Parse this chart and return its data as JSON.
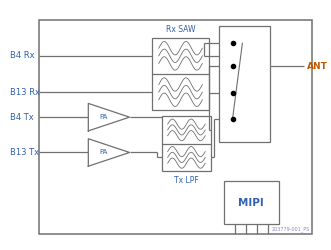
{
  "fig_width": 3.31,
  "fig_height": 2.5,
  "dpi": 100,
  "bg_color": "#ffffff",
  "line_color": "#707070",
  "label_blue": "#3060b0",
  "label_orange": "#c05800",
  "watermark_color": "#8888cc",
  "watermark": "203779-001_PS",
  "labels_left": [
    "B4 Rx",
    "B13 Rx",
    "B4 Tx",
    "B13 Tx"
  ],
  "label_ant": "ANT",
  "label_rxsaw": "Rx SAW",
  "label_txlpf": "Tx LPF",
  "label_mipi": "MIPI",
  "label_pa": "PA"
}
